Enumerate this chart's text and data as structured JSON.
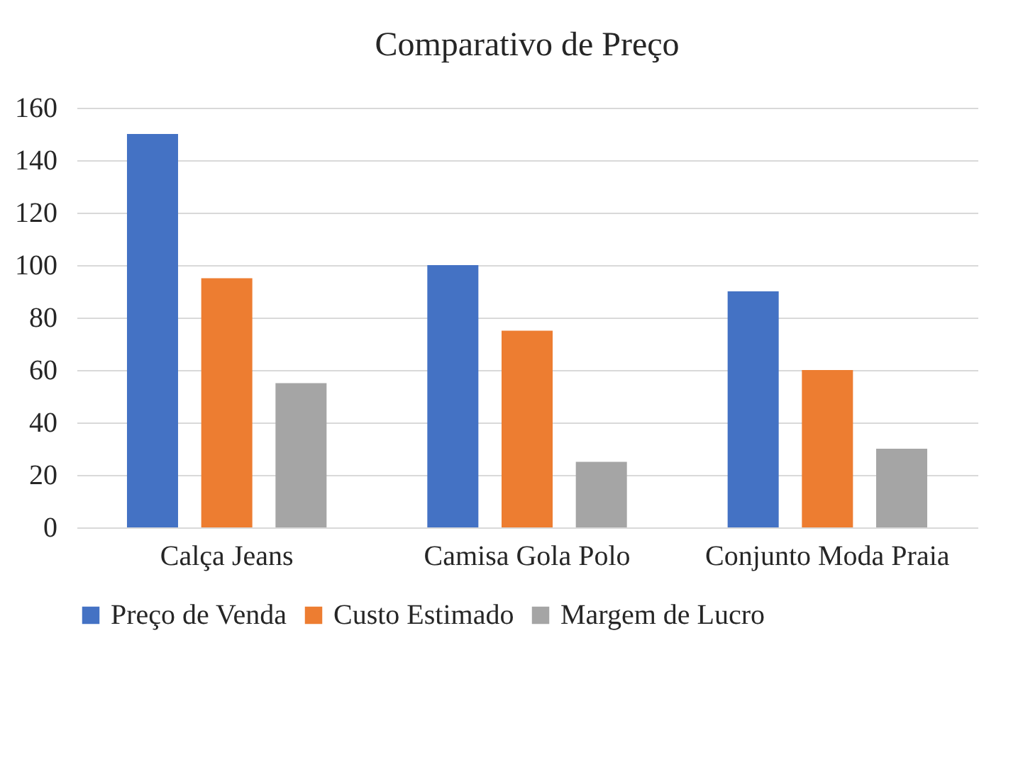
{
  "chart_data": {
    "type": "bar",
    "title": "Comparativo de Preço",
    "categories": [
      "Calça Jeans",
      "Camisa Gola Polo",
      "Conjunto Moda Praia"
    ],
    "series": [
      {
        "name": "Preço de Venda",
        "color": "#4472c4",
        "values": [
          150,
          100,
          90
        ]
      },
      {
        "name": "Custo Estimado",
        "color": "#ed7d31",
        "values": [
          95,
          75,
          60
        ]
      },
      {
        "name": "Margem de Lucro",
        "color": "#a5a5a5",
        "values": [
          55,
          25,
          30
        ]
      }
    ],
    "ylim": [
      0,
      160
    ],
    "yticks": [
      0,
      20,
      40,
      60,
      80,
      100,
      120,
      140,
      160
    ],
    "grid": "y",
    "legend": "bottom"
  }
}
